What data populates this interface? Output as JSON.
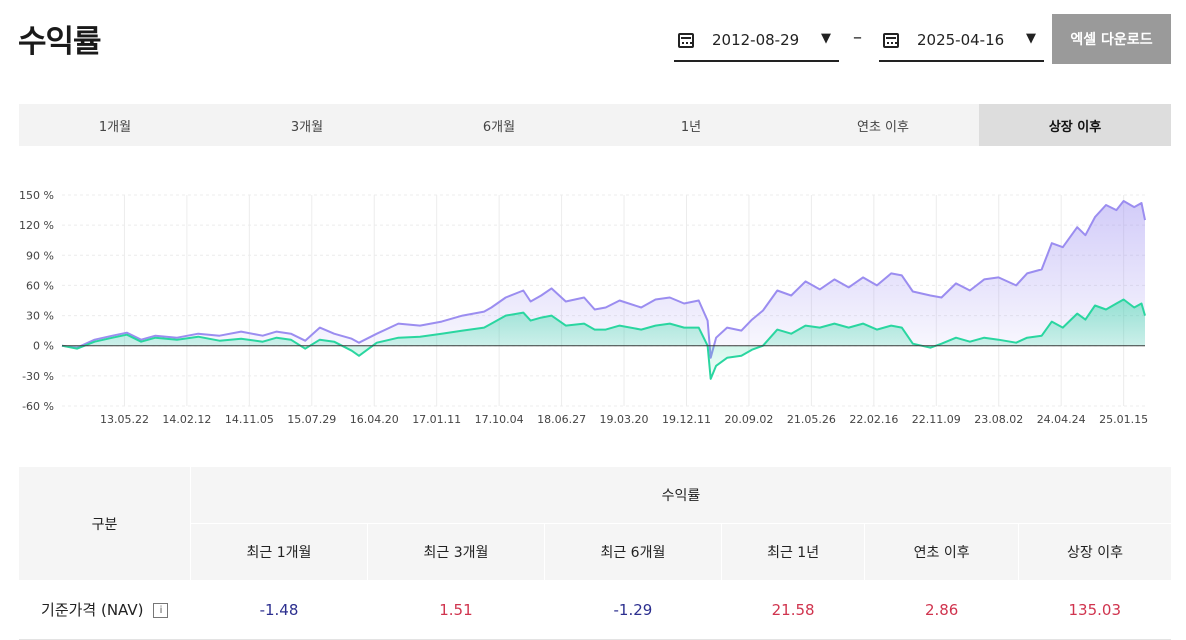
{
  "page": {
    "title": "수익률"
  },
  "date_range": {
    "start": "2012-08-29",
    "end": "2025-04-16",
    "separator": "–",
    "caret": "▼"
  },
  "excel_button": "엑셀 다운로드",
  "tabs": [
    {
      "label": "1개월",
      "active": false
    },
    {
      "label": "3개월",
      "active": false
    },
    {
      "label": "6개월",
      "active": false
    },
    {
      "label": "1년",
      "active": false
    },
    {
      "label": "연초 이후",
      "active": false
    },
    {
      "label": "상장 이후",
      "active": true
    }
  ],
  "chart_data": {
    "type": "area",
    "ylim": [
      -60,
      150
    ],
    "yticks": [
      150,
      120,
      90,
      60,
      30,
      0,
      -30,
      -60
    ],
    "ytick_suffix": " %",
    "x_labels": [
      "13.05.22",
      "14.02.12",
      "14.11.05",
      "15.07.29",
      "16.04.20",
      "17.01.11",
      "17.10.04",
      "18.06.27",
      "19.03.20",
      "19.12.11",
      "20.09.02",
      "21.05.26",
      "22.02.16",
      "22.11.09",
      "23.08.02",
      "24.04.24",
      "25.01.15"
    ],
    "x_range": [
      "2012-08-29",
      "2025-04-16"
    ],
    "grid": true,
    "series": [
      {
        "color": "#9b8df0",
        "points": [
          [
            "2012-08-29",
            0
          ],
          [
            "2012-11-01",
            -2
          ],
          [
            "2013-01-15",
            6
          ],
          [
            "2013-04-01",
            10
          ],
          [
            "2013-06-01",
            13
          ],
          [
            "2013-08-01",
            6
          ],
          [
            "2013-10-01",
            10
          ],
          [
            "2014-01-01",
            8
          ],
          [
            "2014-04-01",
            12
          ],
          [
            "2014-07-01",
            10
          ],
          [
            "2014-10-01",
            14
          ],
          [
            "2015-01-01",
            10
          ],
          [
            "2015-03-01",
            14
          ],
          [
            "2015-05-01",
            12
          ],
          [
            "2015-07-01",
            5
          ],
          [
            "2015-09-01",
            18
          ],
          [
            "2015-11-01",
            12
          ],
          [
            "2016-01-15",
            7
          ],
          [
            "2016-02-15",
            3
          ],
          [
            "2016-05-01",
            12
          ],
          [
            "2016-08-01",
            22
          ],
          [
            "2016-11-01",
            20
          ],
          [
            "2017-02-01",
            24
          ],
          [
            "2017-05-01",
            30
          ],
          [
            "2017-08-01",
            34
          ],
          [
            "2017-09-01",
            38
          ],
          [
            "2017-11-01",
            48
          ],
          [
            "2018-01-15",
            55
          ],
          [
            "2018-02-15",
            44
          ],
          [
            "2018-04-01",
            50
          ],
          [
            "2018-05-15",
            57
          ],
          [
            "2018-07-15",
            44
          ],
          [
            "2018-10-01",
            48
          ],
          [
            "2018-11-15",
            36
          ],
          [
            "2019-01-01",
            38
          ],
          [
            "2019-03-01",
            45
          ],
          [
            "2019-06-01",
            38
          ],
          [
            "2019-08-01",
            46
          ],
          [
            "2019-10-01",
            48
          ],
          [
            "2019-12-01",
            42
          ],
          [
            "2020-02-01",
            45
          ],
          [
            "2020-03-10",
            25
          ],
          [
            "2020-03-23",
            -12
          ],
          [
            "2020-04-15",
            8
          ],
          [
            "2020-06-01",
            18
          ],
          [
            "2020-08-01",
            15
          ],
          [
            "2020-09-15",
            26
          ],
          [
            "2020-11-01",
            35
          ],
          [
            "2021-01-01",
            55
          ],
          [
            "2021-03-01",
            50
          ],
          [
            "2021-05-01",
            64
          ],
          [
            "2021-07-01",
            56
          ],
          [
            "2021-09-01",
            66
          ],
          [
            "2021-11-01",
            58
          ],
          [
            "2022-01-01",
            68
          ],
          [
            "2022-03-01",
            60
          ],
          [
            "2022-05-01",
            72
          ],
          [
            "2022-06-15",
            70
          ],
          [
            "2022-08-01",
            54
          ],
          [
            "2022-10-15",
            50
          ],
          [
            "2022-12-01",
            48
          ],
          [
            "2023-02-01",
            62
          ],
          [
            "2023-04-01",
            55
          ],
          [
            "2023-06-01",
            66
          ],
          [
            "2023-08-01",
            68
          ],
          [
            "2023-10-15",
            60
          ],
          [
            "2023-12-01",
            72
          ],
          [
            "2024-02-01",
            76
          ],
          [
            "2024-03-15",
            102
          ],
          [
            "2024-05-01",
            98
          ],
          [
            "2024-07-01",
            118
          ],
          [
            "2024-08-05",
            110
          ],
          [
            "2024-09-15",
            128
          ],
          [
            "2024-11-01",
            140
          ],
          [
            "2024-12-15",
            135
          ],
          [
            "2025-01-15",
            144
          ],
          [
            "2025-03-01",
            138
          ],
          [
            "2025-04-01",
            142
          ],
          [
            "2025-04-16",
            125
          ]
        ]
      },
      {
        "color": "#2ad6a0",
        "points": [
          [
            "2012-08-29",
            0
          ],
          [
            "2012-11-01",
            -3
          ],
          [
            "2013-01-15",
            4
          ],
          [
            "2013-04-01",
            8
          ],
          [
            "2013-06-01",
            11
          ],
          [
            "2013-08-01",
            4
          ],
          [
            "2013-10-01",
            8
          ],
          [
            "2014-01-01",
            6
          ],
          [
            "2014-04-01",
            9
          ],
          [
            "2014-07-01",
            5
          ],
          [
            "2014-10-01",
            7
          ],
          [
            "2015-01-01",
            4
          ],
          [
            "2015-03-01",
            8
          ],
          [
            "2015-05-01",
            6
          ],
          [
            "2015-07-01",
            -3
          ],
          [
            "2015-09-01",
            6
          ],
          [
            "2015-11-01",
            4
          ],
          [
            "2016-01-15",
            -5
          ],
          [
            "2016-02-15",
            -10
          ],
          [
            "2016-05-01",
            3
          ],
          [
            "2016-08-01",
            8
          ],
          [
            "2016-11-01",
            9
          ],
          [
            "2017-02-01",
            12
          ],
          [
            "2017-05-01",
            15
          ],
          [
            "2017-08-01",
            18
          ],
          [
            "2017-09-01",
            22
          ],
          [
            "2017-11-01",
            30
          ],
          [
            "2018-01-15",
            33
          ],
          [
            "2018-02-15",
            25
          ],
          [
            "2018-04-01",
            28
          ],
          [
            "2018-05-15",
            30
          ],
          [
            "2018-07-15",
            20
          ],
          [
            "2018-10-01",
            22
          ],
          [
            "2018-11-15",
            16
          ],
          [
            "2019-01-01",
            16
          ],
          [
            "2019-03-01",
            20
          ],
          [
            "2019-06-01",
            16
          ],
          [
            "2019-08-01",
            20
          ],
          [
            "2019-10-01",
            22
          ],
          [
            "2019-12-01",
            18
          ],
          [
            "2020-02-01",
            18
          ],
          [
            "2020-03-10",
            0
          ],
          [
            "2020-03-23",
            -33
          ],
          [
            "2020-04-15",
            -20
          ],
          [
            "2020-06-01",
            -12
          ],
          [
            "2020-08-01",
            -10
          ],
          [
            "2020-09-15",
            -4
          ],
          [
            "2020-11-01",
            0
          ],
          [
            "2021-01-01",
            16
          ],
          [
            "2021-03-01",
            12
          ],
          [
            "2021-05-01",
            20
          ],
          [
            "2021-07-01",
            18
          ],
          [
            "2021-09-01",
            22
          ],
          [
            "2021-11-01",
            18
          ],
          [
            "2022-01-01",
            22
          ],
          [
            "2022-03-01",
            16
          ],
          [
            "2022-05-01",
            20
          ],
          [
            "2022-06-15",
            18
          ],
          [
            "2022-08-01",
            2
          ],
          [
            "2022-10-15",
            -2
          ],
          [
            "2022-12-01",
            2
          ],
          [
            "2023-02-01",
            8
          ],
          [
            "2023-04-01",
            4
          ],
          [
            "2023-06-01",
            8
          ],
          [
            "2023-08-01",
            6
          ],
          [
            "2023-10-15",
            3
          ],
          [
            "2023-12-01",
            8
          ],
          [
            "2024-02-01",
            10
          ],
          [
            "2024-03-15",
            24
          ],
          [
            "2024-05-01",
            18
          ],
          [
            "2024-07-01",
            32
          ],
          [
            "2024-08-05",
            26
          ],
          [
            "2024-09-15",
            40
          ],
          [
            "2024-11-01",
            36
          ],
          [
            "2024-12-15",
            42
          ],
          [
            "2025-01-15",
            46
          ],
          [
            "2025-03-01",
            38
          ],
          [
            "2025-04-01",
            42
          ],
          [
            "2025-04-16",
            30
          ]
        ]
      }
    ]
  },
  "table": {
    "group_header": "구분",
    "returns_header": "수익률",
    "columns": [
      "최근 1개월",
      "최근 3개월",
      "최근 6개월",
      "최근 1년",
      "연초 이후",
      "상장 이후"
    ],
    "rows": [
      {
        "label": "기준가격 (NAV)",
        "info_icon": "i",
        "values": [
          "-1.48",
          "1.51",
          "-1.29",
          "21.58",
          "2.86",
          "135.03"
        ]
      }
    ]
  }
}
